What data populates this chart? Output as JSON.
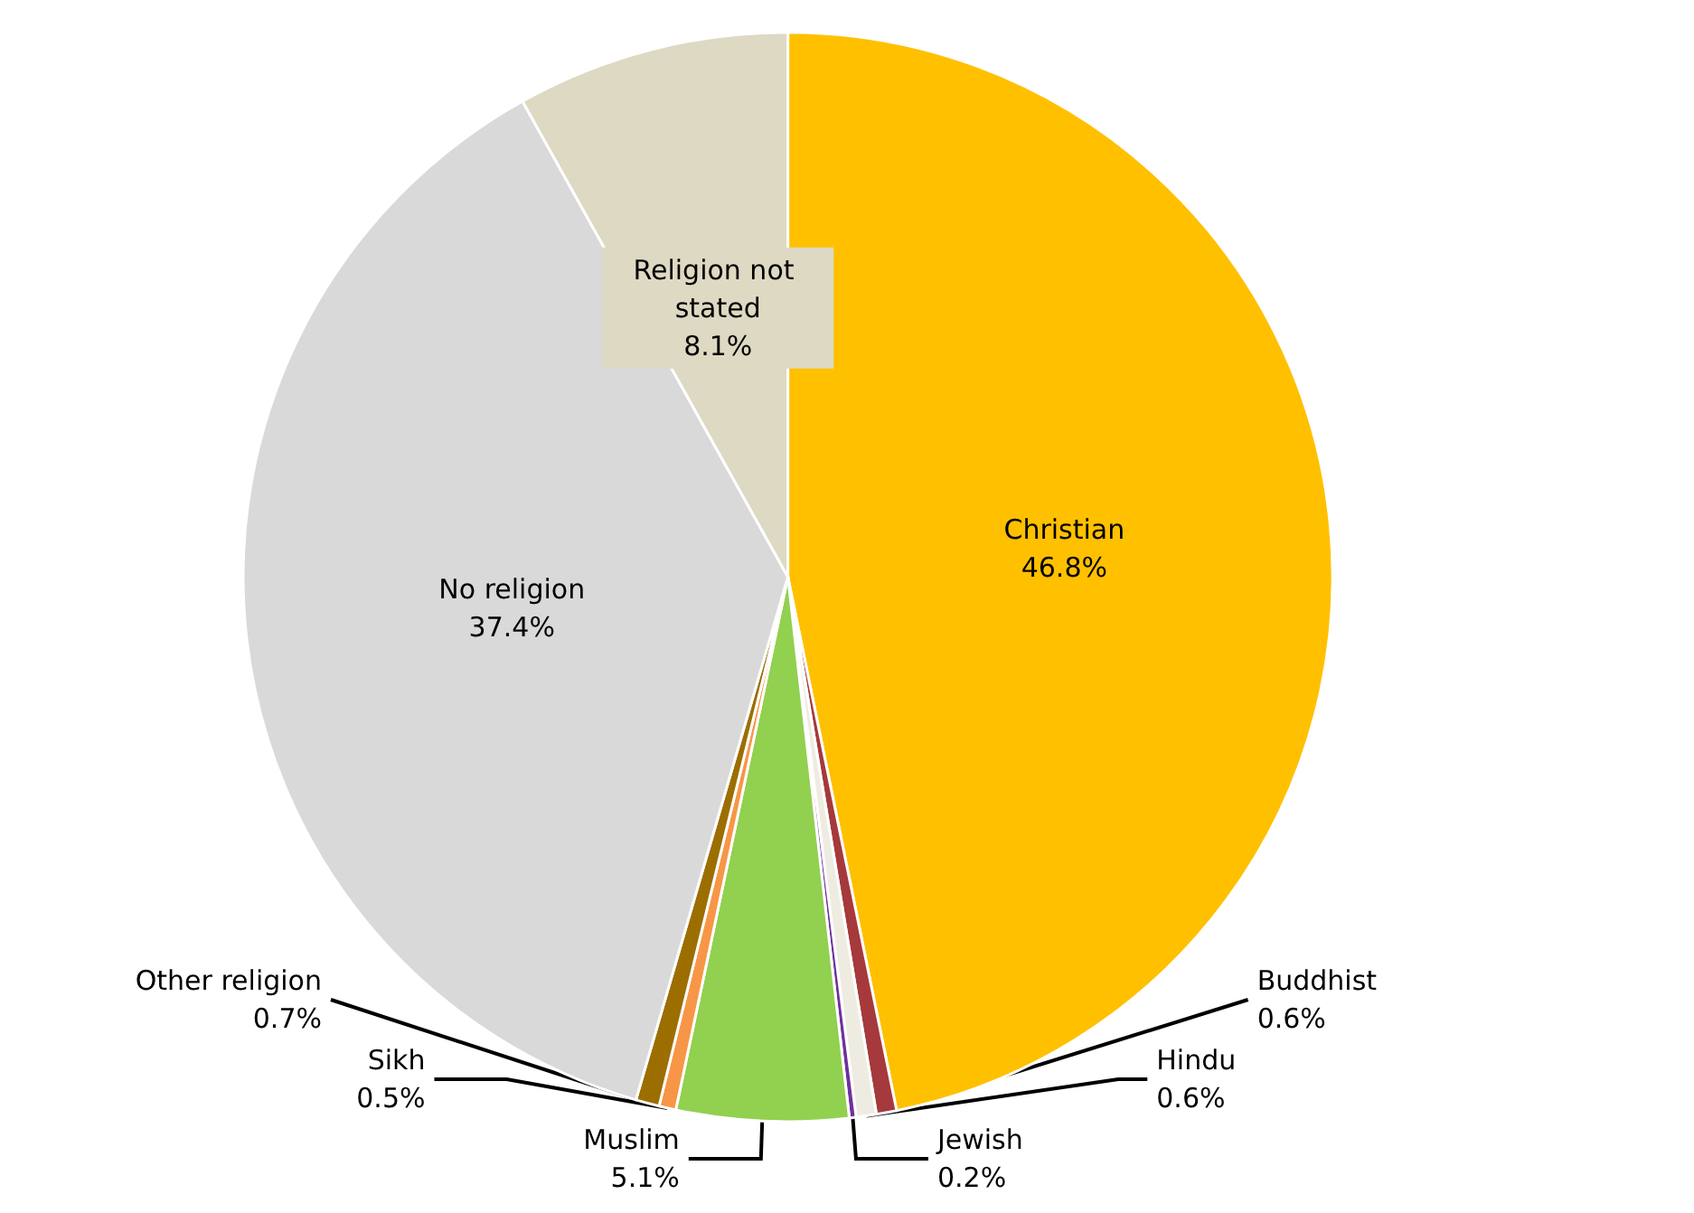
{
  "chart_data": {
    "type": "pie",
    "categories": [
      "Christian",
      "Buddhist",
      "Hindu",
      "Jewish",
      "Muslim",
      "Sikh",
      "Other religion",
      "No religion",
      "Religion not stated"
    ],
    "values": [
      46.8,
      0.6,
      0.6,
      0.2,
      5.1,
      0.5,
      0.7,
      37.4,
      8.1
    ],
    "value_labels": [
      "46.8%",
      "0.6%",
      "0.6%",
      "0.2%",
      "5.1%",
      "0.5%",
      "0.7%",
      "37.4%",
      "8.1%"
    ],
    "colors": [
      "#ffc000",
      "#a5393b",
      "#eeece1",
      "#7030a0",
      "#92d050",
      "#f79646",
      "#9c6e00",
      "#d9d9d9",
      "#ddd9c3"
    ],
    "legend": false
  }
}
